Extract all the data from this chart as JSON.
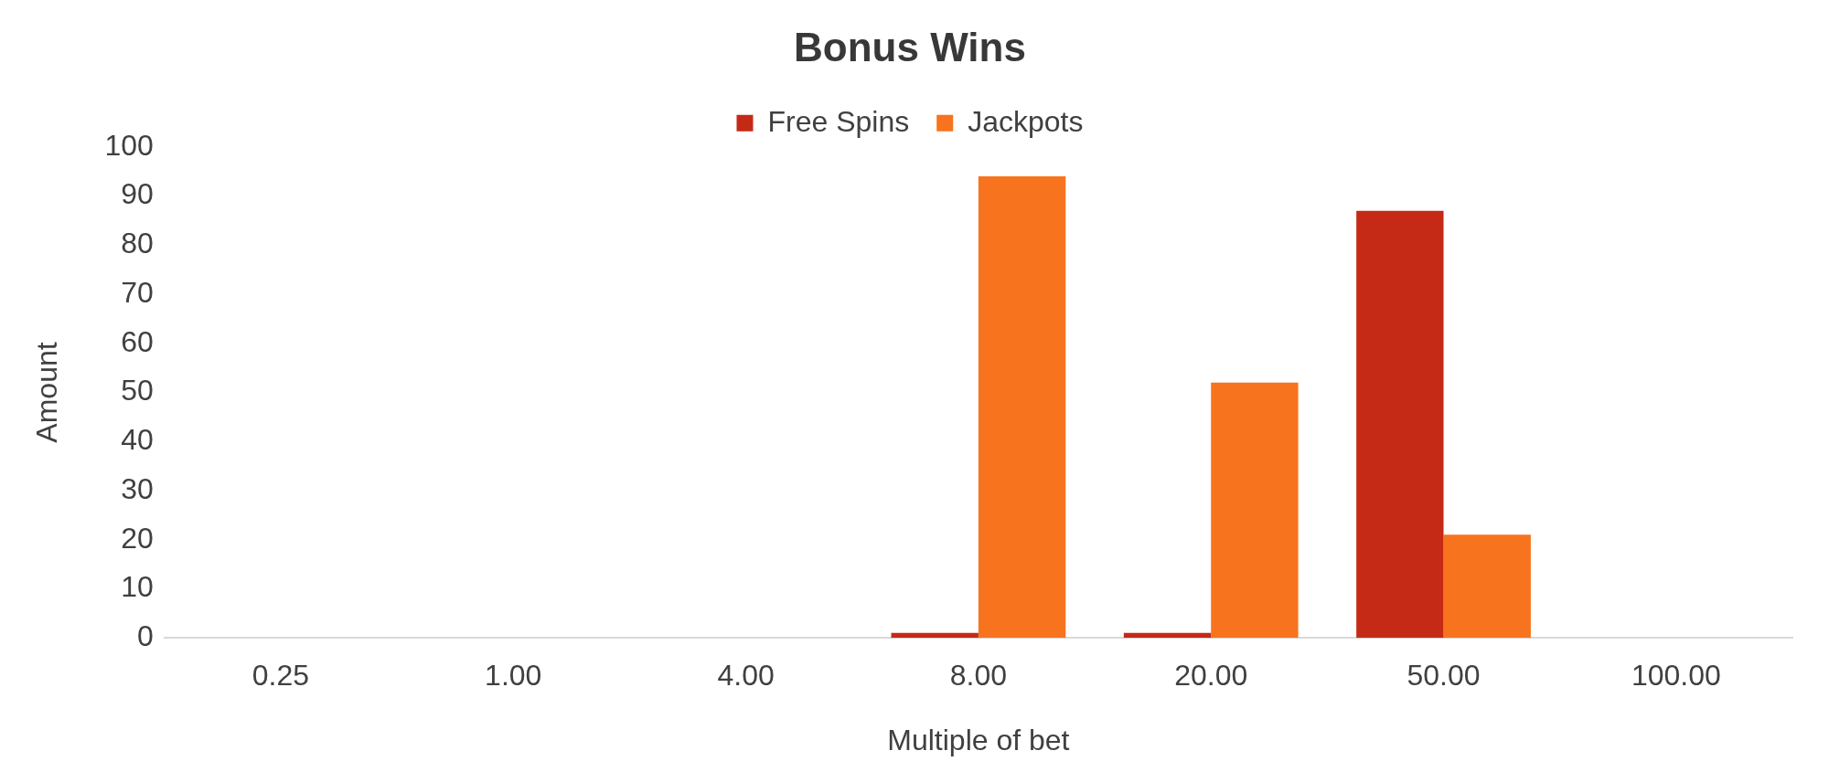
{
  "chart_data": {
    "type": "bar",
    "title": "Bonus Wins",
    "xlabel": "Multiple of bet",
    "ylabel": "Amount",
    "categories": [
      "0.25",
      "1.00",
      "4.00",
      "8.00",
      "20.00",
      "50.00",
      "100.00"
    ],
    "series": [
      {
        "name": "Free Spins",
        "color": "#c42a16",
        "values": [
          0,
          0,
          0,
          1,
          1,
          87,
          0
        ]
      },
      {
        "name": "Jackpots",
        "color": "#f8731e",
        "values": [
          0,
          0,
          0,
          94,
          52,
          21,
          0
        ]
      }
    ],
    "ylim": [
      0,
      100
    ],
    "yticks": [
      0,
      10,
      20,
      30,
      40,
      50,
      60,
      70,
      80,
      90,
      100
    ],
    "grid": false,
    "legend": "top"
  }
}
